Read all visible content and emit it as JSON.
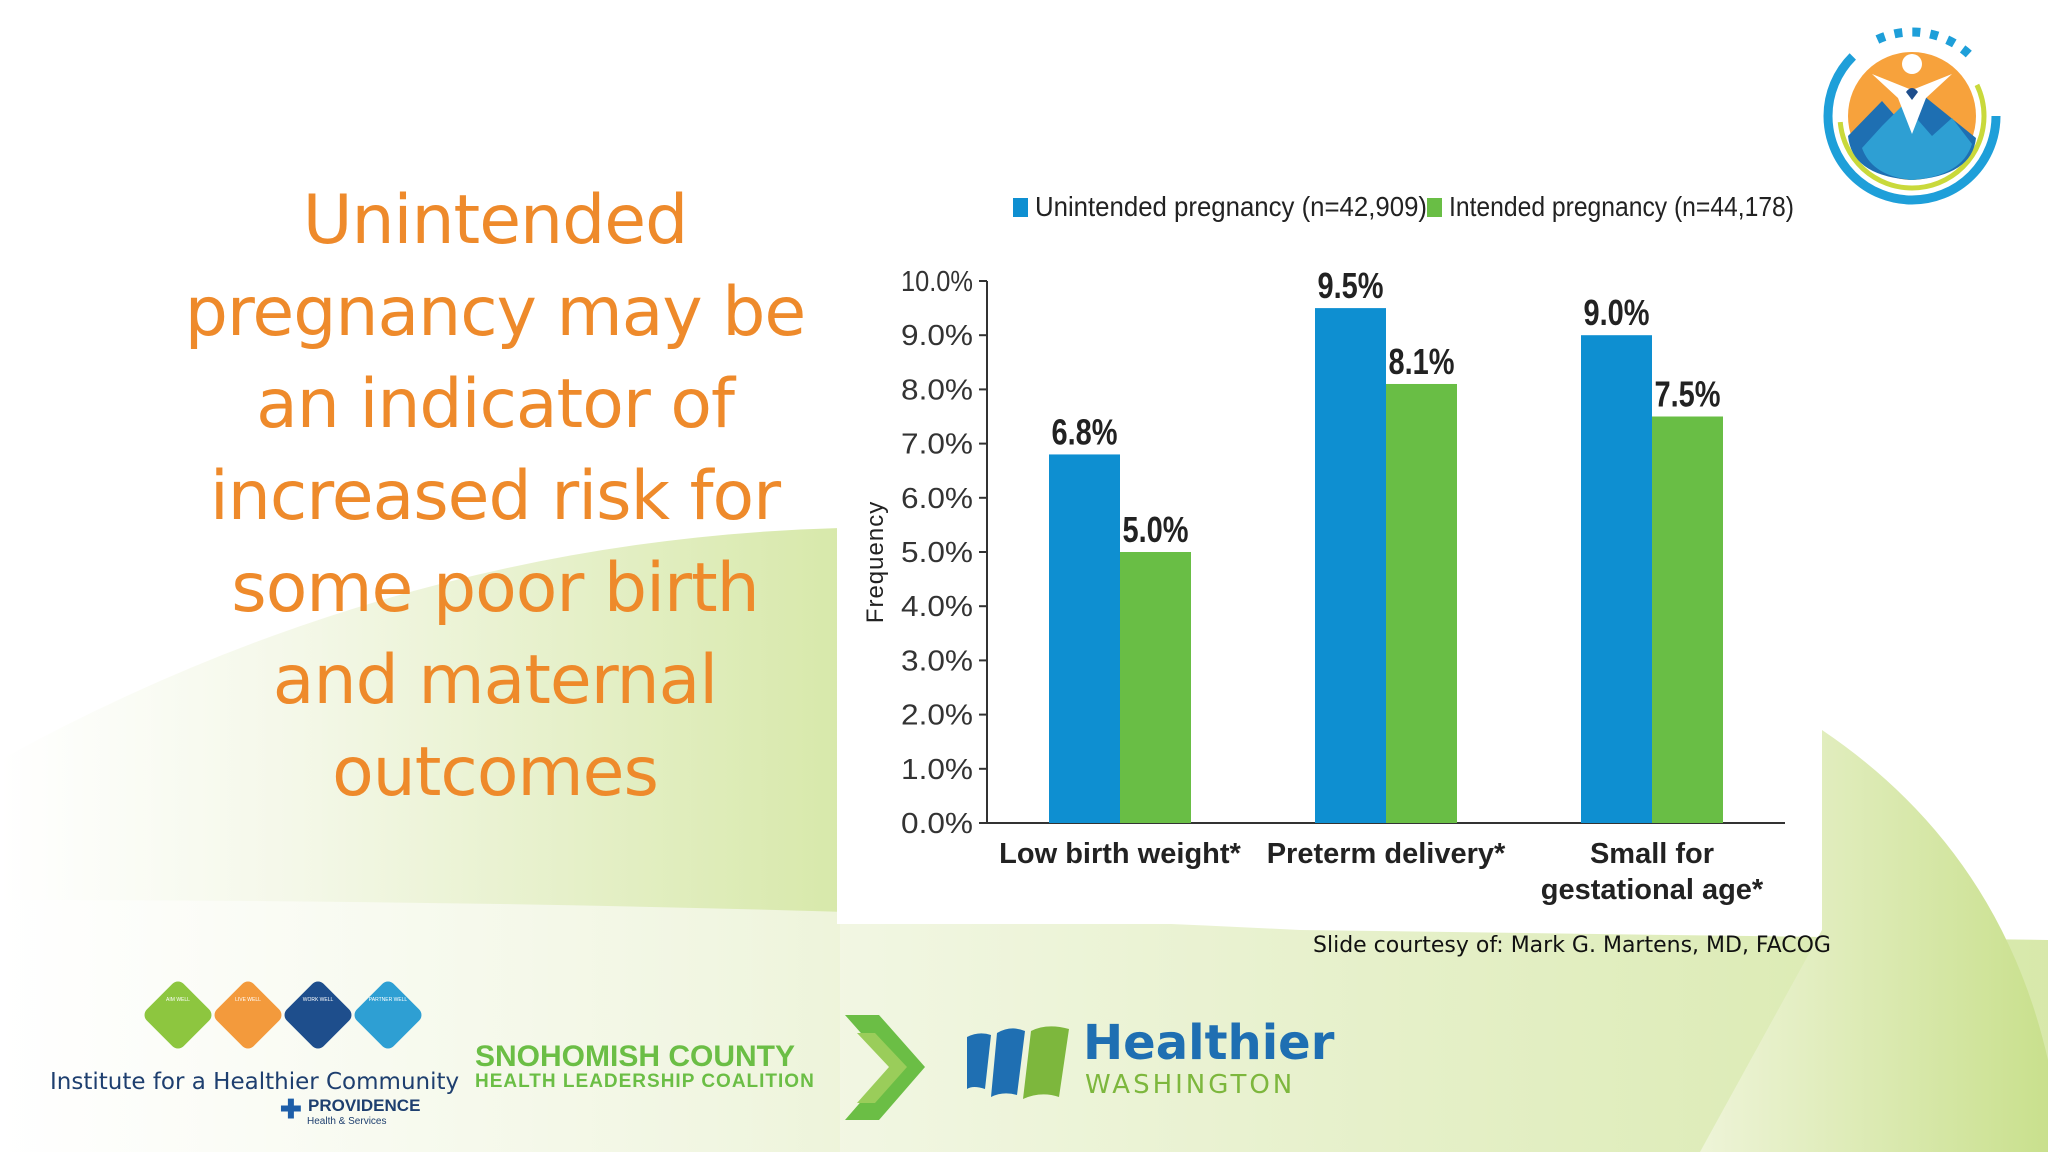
{
  "slide": {
    "title": "Unintended pregnancy may be an indicator of increased risk for some poor birth and maternal outcomes",
    "credit": "Slide courtesy of: Mark G. Martens, MD, FACOG"
  },
  "colors": {
    "title": "#EE8A2B",
    "unintended": "#0E8FD1",
    "intended": "#69BE45",
    "background_green": "#D5E6A4"
  },
  "chart_data": {
    "type": "bar",
    "categories": [
      "Low birth weight*",
      "Preterm delivery*",
      "Small for gestational age*"
    ],
    "series": [
      {
        "name": "Unintended pregnancy (n=42,909)",
        "values": [
          6.8,
          9.5,
          9.0
        ],
        "labels": [
          "6.8%",
          "9.5%",
          "9.0%"
        ]
      },
      {
        "name": "Intended pregnancy (n=44,178)",
        "values": [
          5.0,
          8.1,
          7.5
        ],
        "labels": [
          "5.0%",
          "8.1%",
          "7.5%"
        ]
      }
    ],
    "ylabel": "Frequency",
    "xlabel": "",
    "ylim": [
      0,
      10
    ],
    "yticks": [
      "0.0%",
      "1.0%",
      "2.0%",
      "3.0%",
      "4.0%",
      "5.0%",
      "6.0%",
      "7.0%",
      "8.0%",
      "9.0%",
      "10.0%"
    ],
    "legend_position": "top",
    "grid": false
  },
  "logos": {
    "ihc": {
      "name": "Institute for a Healthier Community",
      "badges": [
        "AIM WELL",
        "LIVE WELL",
        "WORK WELL",
        "PARTNER WELL"
      ],
      "badge_colors": [
        "#8DC63F",
        "#F39A3C",
        "#1E4E8C",
        "#2E9FD3"
      ],
      "partner": "PROVIDENCE",
      "partner_sub": "Health & Services"
    },
    "snoco": {
      "line1": "SNOHOMISH COUNTY",
      "line2": "HEALTH LEADERSHIP COALITION"
    },
    "hw": {
      "line1": "Healthier",
      "line2": "WASHINGTON"
    }
  }
}
